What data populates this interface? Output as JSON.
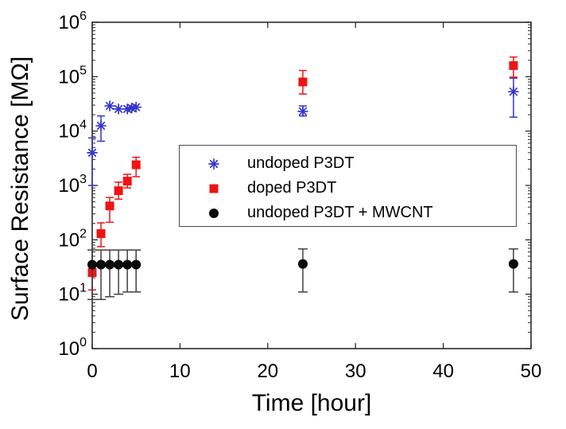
{
  "colors": {
    "background": "#ffffff",
    "axis": "#2b2b2b",
    "text": "#000000",
    "legend_border": "#4a4a4a",
    "blue_series": "#3636c9",
    "red_series": "#ee1414",
    "black_series": "#0a0a0a",
    "black_error": "#404040"
  },
  "chart_data": {
    "type": "scatter",
    "title": "",
    "xlabel": "Time [hour]",
    "ylabel": "Surface Resistance [MΩ]",
    "grid": false,
    "legend_position": "inside upper-center",
    "x_axis": {
      "min": 0,
      "max": 50,
      "ticks": [
        0,
        10,
        20,
        30,
        40,
        50
      ]
    },
    "y_axis": {
      "scale": "log",
      "min_exp": 0,
      "max_exp": 6,
      "tick_exponents": [
        0,
        1,
        2,
        3,
        4,
        5,
        6
      ],
      "tick_label_base": "10",
      "minor_ticks": true
    },
    "series": [
      {
        "name": "undoped P3DT",
        "marker": "asterisk",
        "color": "#3636c9",
        "points": [
          {
            "x": 0,
            "y": 4000,
            "lo": 1000,
            "hi": 7500
          },
          {
            "x": 1,
            "y": 12500,
            "lo": 6500,
            "hi": 19000
          },
          {
            "x": 2,
            "y": 29000
          },
          {
            "x": 3,
            "y": 25500
          },
          {
            "x": 4,
            "y": 25500
          },
          {
            "x": 4.5,
            "y": 26500
          },
          {
            "x": 5,
            "y": 27500
          },
          {
            "x": 24,
            "y": 23000,
            "lo": 19000,
            "hi": 29000
          },
          {
            "x": 48,
            "y": 53000,
            "lo": 18000,
            "hi": 94000
          }
        ]
      },
      {
        "name": "doped P3DT",
        "marker": "square",
        "color": "#ee1414",
        "points": [
          {
            "x": 0,
            "y": 25,
            "lo": 12,
            "hi": 33
          },
          {
            "x": 1,
            "y": 130,
            "lo": 75,
            "hi": 205
          },
          {
            "x": 2,
            "y": 420,
            "lo": 210,
            "hi": 600
          },
          {
            "x": 3,
            "y": 800,
            "lo": 560,
            "hi": 1150
          },
          {
            "x": 4,
            "y": 1200,
            "lo": 900,
            "hi": 1600
          },
          {
            "x": 5,
            "y": 2400,
            "lo": 1450,
            "hi": 3300
          },
          {
            "x": 24,
            "y": 80000,
            "lo": 48000,
            "hi": 130000
          },
          {
            "x": 48,
            "y": 160000,
            "lo": 98000,
            "hi": 230000
          }
        ]
      },
      {
        "name": "undoped P3DT + MWCNT",
        "marker": "circle",
        "color": "#0a0a0a",
        "error_color": "#404040",
        "points": [
          {
            "x": 0,
            "y": 35,
            "lo": 8,
            "hi": 65
          },
          {
            "x": 1,
            "y": 35,
            "lo": 8,
            "hi": 65
          },
          {
            "x": 2,
            "y": 35,
            "lo": 9,
            "hi": 65
          },
          {
            "x": 3,
            "y": 35,
            "lo": 10,
            "hi": 65
          },
          {
            "x": 4,
            "y": 35,
            "lo": 11,
            "hi": 65
          },
          {
            "x": 5,
            "y": 35,
            "lo": 11,
            "hi": 65
          },
          {
            "x": 24,
            "y": 36,
            "lo": 11,
            "hi": 68
          },
          {
            "x": 48,
            "y": 36,
            "lo": 11,
            "hi": 68
          }
        ]
      }
    ]
  }
}
